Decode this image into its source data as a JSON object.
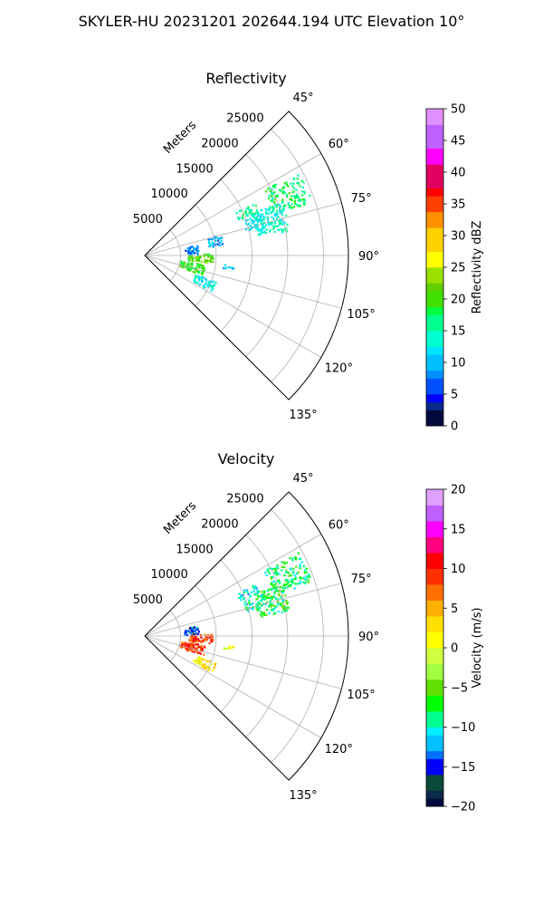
{
  "figure": {
    "title": "SKYLER-HU  20231201  202644.194 UTC Elevation 10°"
  },
  "chart_data": [
    {
      "type": "polar-sector",
      "title": "Reflectivity",
      "radial_label": "Meters",
      "radial_ticks": [
        5000,
        10000,
        15000,
        20000,
        25000
      ],
      "radial_tick_labels": [
        "5000",
        "10000",
        "15000",
        "20000",
        "25000"
      ],
      "r_max": 28500,
      "azimuth_range_deg": [
        45,
        135
      ],
      "azimuth_ticks_deg": [
        45,
        60,
        75,
        90,
        105,
        120,
        135
      ],
      "azimuth_tick_labels": [
        "45°",
        "60°",
        "75°",
        "90°",
        "105°",
        "120°",
        "135°"
      ],
      "grid": true,
      "colorbar": {
        "label": "Reflectivity dBZ",
        "min": 0,
        "max": 50,
        "ticks": [
          0,
          5,
          10,
          15,
          20,
          25,
          30,
          35,
          40,
          45,
          50
        ],
        "tick_labels": [
          "0",
          "5",
          "10",
          "15",
          "20",
          "25",
          "30",
          "35",
          "40",
          "45",
          "50"
        ],
        "colormap": "pyart_NWSRef"
      },
      "echo_regions": [
        {
          "az": [
            61,
            72
          ],
          "r": [
            19000,
            24500
          ],
          "value": 17
        },
        {
          "az": [
            70,
            76
          ],
          "r": [
            14500,
            17500
          ],
          "value": 12
        },
        {
          "az": [
            68,
            80
          ],
          "r": [
            16000,
            20500
          ],
          "value": 14
        },
        {
          "az": [
            64,
            69
          ],
          "r": [
            14000,
            17000
          ],
          "value": 16
        },
        {
          "az": [
            78,
            88
          ],
          "r": [
            5500,
            7500
          ],
          "value": 8
        },
        {
          "az": [
            74,
            82
          ],
          "r": [
            9000,
            11000
          ],
          "value": 9
        },
        {
          "az": [
            88,
            96
          ],
          "r": [
            6000,
            9500
          ],
          "value": 21
        },
        {
          "az": [
            98,
            108
          ],
          "r": [
            5000,
            8500
          ],
          "value": 20
        },
        {
          "az": [
            110,
            118
          ],
          "r": [
            7500,
            10500
          ],
          "value": 13
        },
        {
          "az": [
            96,
            99
          ],
          "r": [
            11000,
            12500
          ],
          "value": 10
        }
      ]
    },
    {
      "type": "polar-sector",
      "title": "Velocity",
      "radial_label": "Meters",
      "radial_ticks": [
        5000,
        10000,
        15000,
        20000,
        25000
      ],
      "radial_tick_labels": [
        "5000",
        "10000",
        "15000",
        "20000",
        "25000"
      ],
      "r_max": 28500,
      "azimuth_range_deg": [
        45,
        135
      ],
      "azimuth_ticks_deg": [
        45,
        60,
        75,
        90,
        105,
        120,
        135
      ],
      "azimuth_tick_labels": [
        "45°",
        "60°",
        "75°",
        "90°",
        "105°",
        "120°",
        "135°"
      ],
      "grid": true,
      "colorbar": {
        "label": "Velocity (m/s)",
        "min": -20,
        "max": 20,
        "ticks": [
          -20,
          -15,
          -10,
          -5,
          0,
          5,
          10,
          15,
          20
        ],
        "tick_labels": [
          "−20",
          "−15",
          "−10",
          "−5",
          "0",
          "5",
          "10",
          "15",
          "20"
        ],
        "colormap": "pyart_BuDRd18"
      },
      "echo_regions": [
        {
          "az": [
            61,
            72
          ],
          "r": [
            19000,
            24500
          ],
          "value": -8
        },
        {
          "az": [
            70,
            76
          ],
          "r": [
            14500,
            17500
          ],
          "value": -9
        },
        {
          "az": [
            68,
            80
          ],
          "r": [
            16000,
            20500
          ],
          "value": -7
        },
        {
          "az": [
            64,
            69
          ],
          "r": [
            14000,
            17000
          ],
          "value": -10
        },
        {
          "az": [
            78,
            88
          ],
          "r": [
            5500,
            7500
          ],
          "value": -14
        },
        {
          "az": [
            88,
            96
          ],
          "r": [
            6000,
            9500
          ],
          "value": 9
        },
        {
          "az": [
            98,
            108
          ],
          "r": [
            5000,
            8500
          ],
          "value": 9
        },
        {
          "az": [
            110,
            118
          ],
          "r": [
            7500,
            10500
          ],
          "value": 2
        },
        {
          "az": [
            96,
            99
          ],
          "r": [
            11000,
            12500
          ],
          "value": 1
        }
      ]
    }
  ]
}
